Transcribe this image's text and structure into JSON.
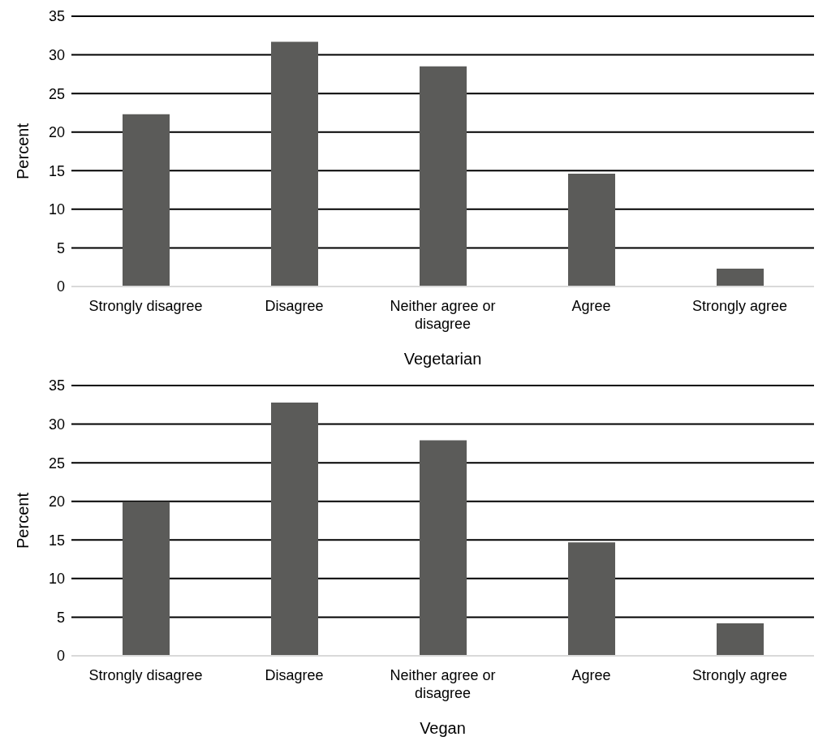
{
  "chart_data": [
    {
      "type": "bar",
      "xlabel": "Vegetarian",
      "ylabel": "Percent",
      "categories": [
        "Strongly disagree",
        "Disagree",
        "Neither agree or disagree",
        "Agree",
        "Strongly agree"
      ],
      "values": [
        22.3,
        31.7,
        28.5,
        14.6,
        2.3
      ],
      "color": "#5b5b59",
      "ylim": [
        0,
        35
      ],
      "yticks": [
        0,
        5,
        10,
        15,
        20,
        25,
        30,
        35
      ],
      "grid": "y"
    },
    {
      "type": "bar",
      "xlabel": "Vegan",
      "ylabel": "Percent",
      "categories": [
        "Strongly disagree",
        "Disagree",
        "Neither agree or disagree",
        "Agree",
        "Strongly agree"
      ],
      "values": [
        19.9,
        32.8,
        27.9,
        14.7,
        4.2
      ],
      "color": "#5b5b59",
      "ylim": [
        0,
        35
      ],
      "yticks": [
        0,
        5,
        10,
        15,
        20,
        25,
        30,
        35
      ],
      "grid": "y"
    }
  ]
}
